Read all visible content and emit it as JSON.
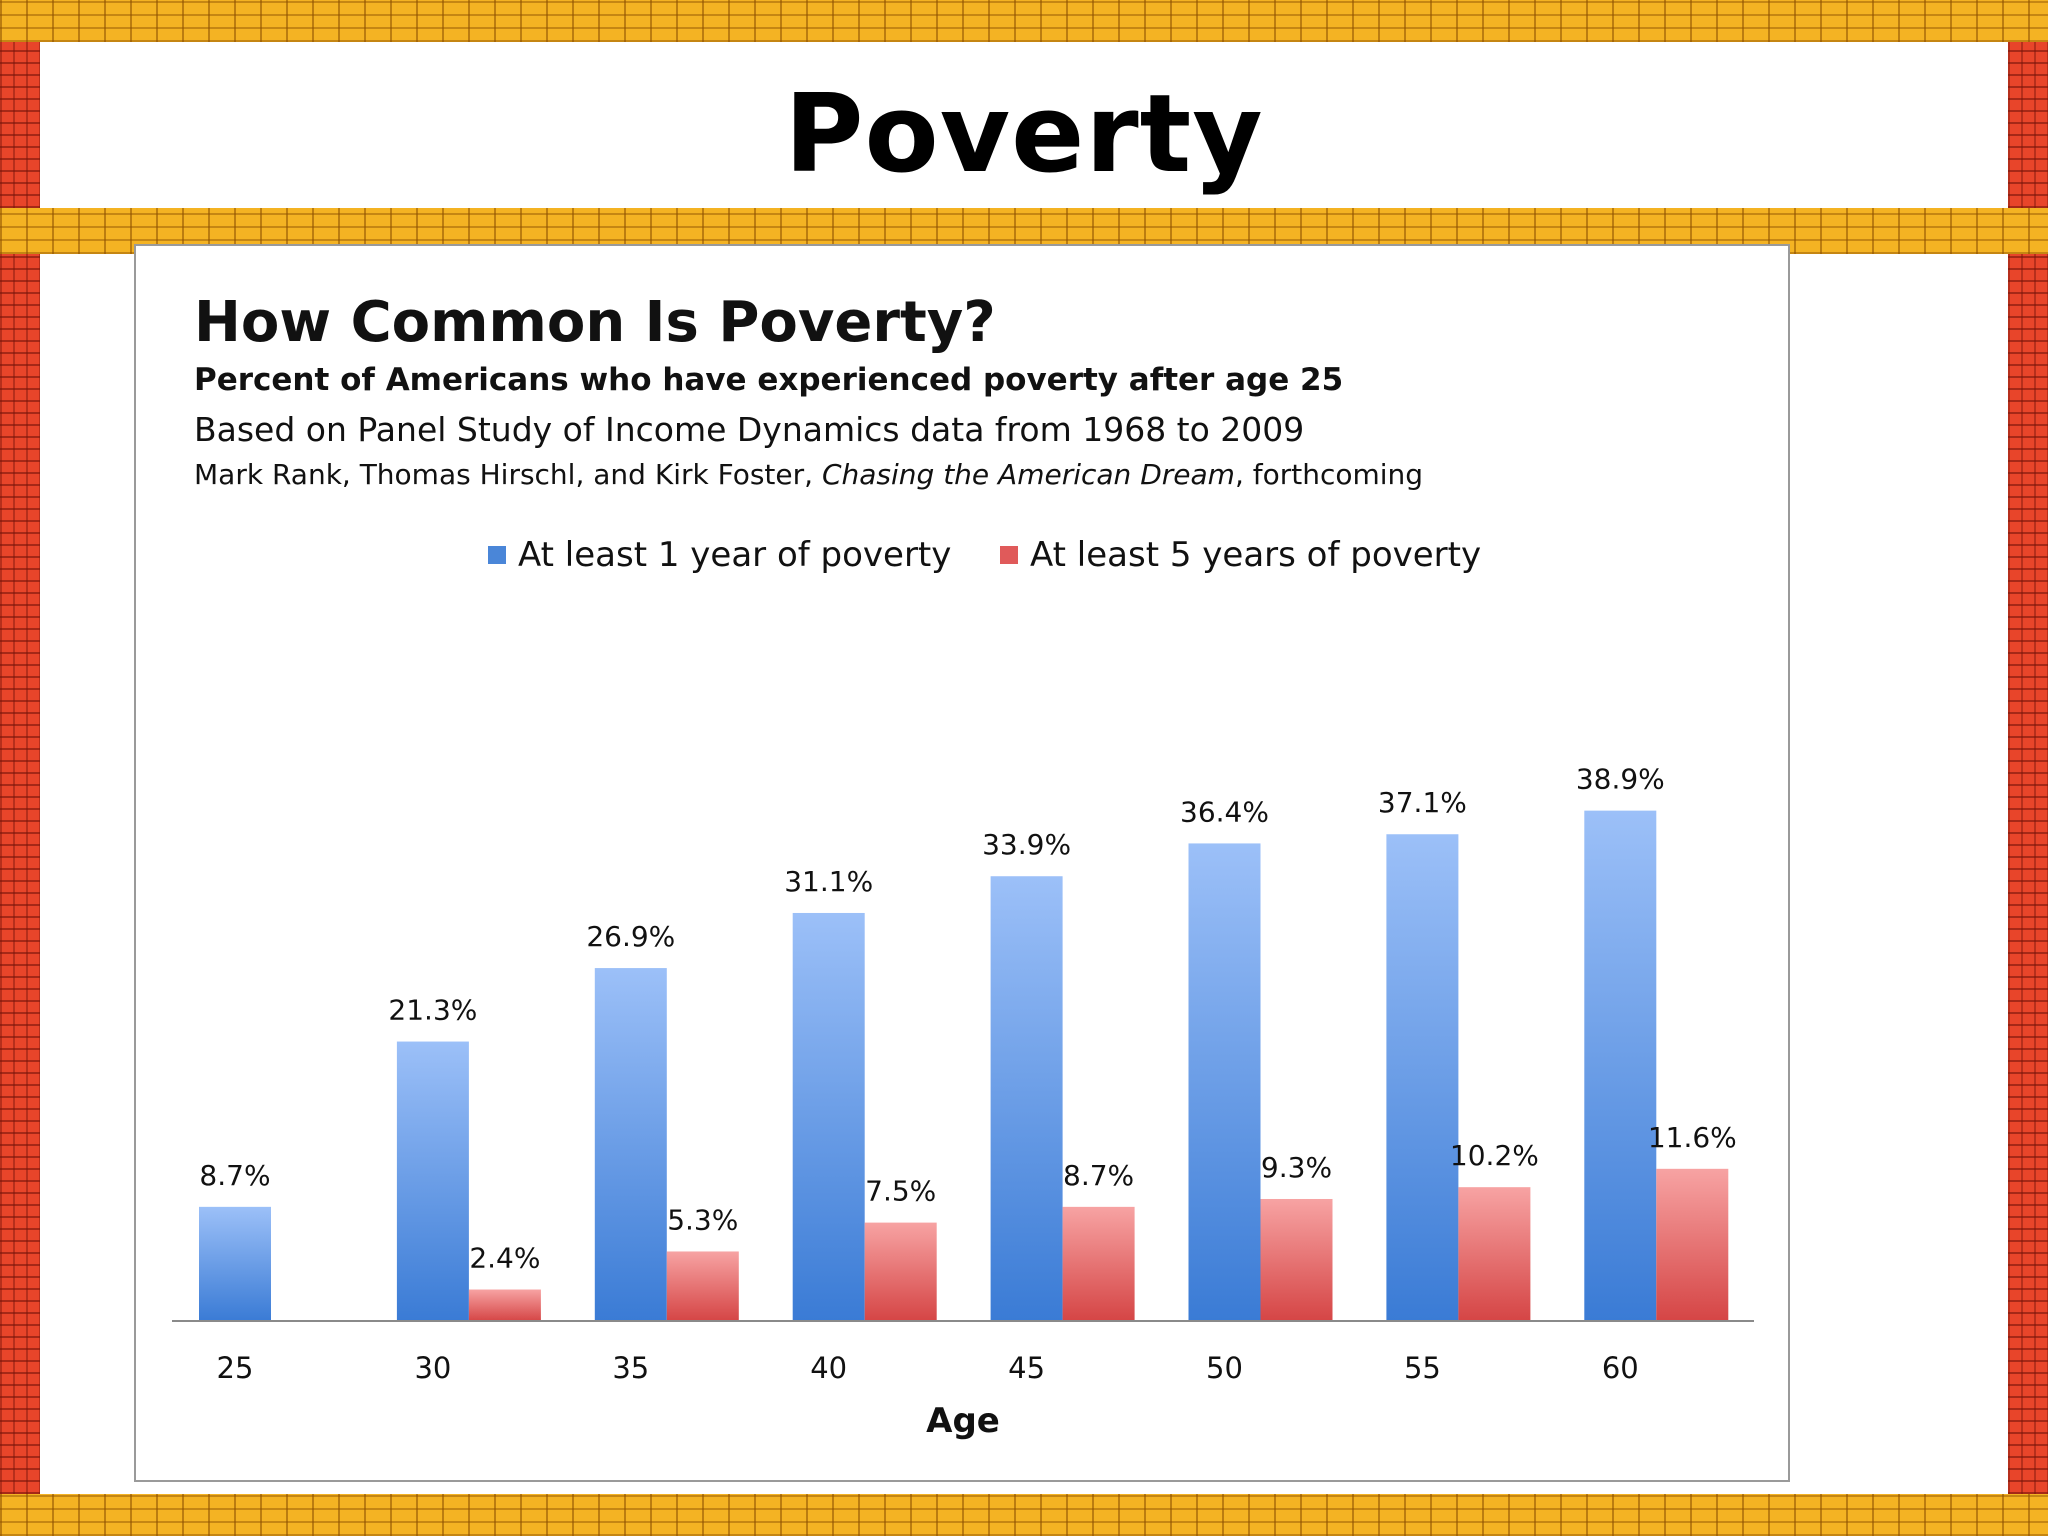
{
  "slide_title": "Poverty",
  "chart_data": {
    "type": "bar",
    "title": "How Common Is Poverty?",
    "subtitle": "Percent of Americans who have experienced poverty after age 25",
    "source": "Based on Panel Study of Income Dynamics data from 1968 to 2009",
    "citation_authors": "Mark Rank, Thomas Hirschl, and Kirk Foster, ",
    "citation_book": "Chasing the American Dream",
    "citation_suffix": ", forthcoming",
    "xlabel": "Age",
    "ylabel": "",
    "categories": [
      "25",
      "30",
      "35",
      "40",
      "45",
      "50",
      "55",
      "60"
    ],
    "series": [
      {
        "name": "At least 1 year of poverty",
        "color": "#4a86d8",
        "values": [
          8.7,
          21.3,
          26.9,
          31.1,
          33.9,
          36.4,
          37.1,
          38.9
        ],
        "labels": [
          "8.7%",
          "21.3%",
          "26.9%",
          "31.1%",
          "33.9%",
          "36.4%",
          "37.1%",
          "38.9%"
        ]
      },
      {
        "name": "At least 5 years of poverty",
        "color": "#e05a5a",
        "values": [
          null,
          2.4,
          5.3,
          7.5,
          8.7,
          9.3,
          10.2,
          11.6
        ],
        "labels": [
          "",
          "2.4%",
          "5.3%",
          "7.5%",
          "8.7%",
          "9.3%",
          "10.2%",
          "11.6%"
        ]
      }
    ],
    "ylim": [
      0,
      40
    ],
    "grid": false,
    "legend": "top-center"
  }
}
